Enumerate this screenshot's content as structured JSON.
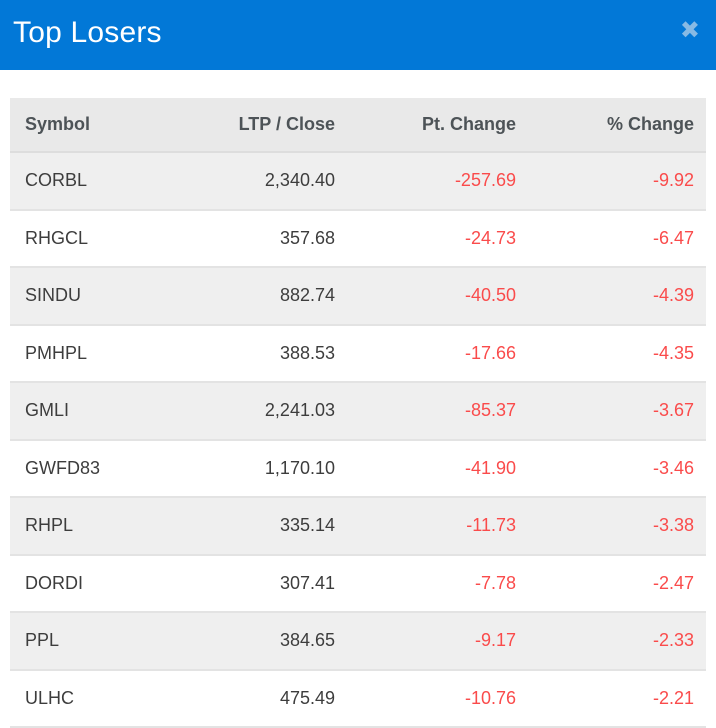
{
  "header": {
    "title": "Top Losers",
    "close_icon": "✖"
  },
  "colors": {
    "header_bg": "#0278d7",
    "close_icon": "#87bae4",
    "table_header_bg": "#e9e9e9",
    "row_stripe_bg": "#efefef",
    "negative_text": "#fa4b4b",
    "body_text": "#3d3d3d",
    "header_text": "#4d5357"
  },
  "table": {
    "columns": [
      {
        "label": "Symbol"
      },
      {
        "label": "LTP / Close"
      },
      {
        "label": "Pt. Change"
      },
      {
        "label": "% Change"
      }
    ],
    "rows": [
      {
        "symbol": "CORBL",
        "ltp_close": "2,340.40",
        "pt_change": "-257.69",
        "pct_change": "-9.92"
      },
      {
        "symbol": "RHGCL",
        "ltp_close": "357.68",
        "pt_change": "-24.73",
        "pct_change": "-6.47"
      },
      {
        "symbol": "SINDU",
        "ltp_close": "882.74",
        "pt_change": "-40.50",
        "pct_change": "-4.39"
      },
      {
        "symbol": "PMHPL",
        "ltp_close": "388.53",
        "pt_change": "-17.66",
        "pct_change": "-4.35"
      },
      {
        "symbol": "GMLI",
        "ltp_close": "2,241.03",
        "pt_change": "-85.37",
        "pct_change": "-3.67"
      },
      {
        "symbol": "GWFD83",
        "ltp_close": "1,170.10",
        "pt_change": "-41.90",
        "pct_change": "-3.46"
      },
      {
        "symbol": "RHPL",
        "ltp_close": "335.14",
        "pt_change": "-11.73",
        "pct_change": "-3.38"
      },
      {
        "symbol": "DORDI",
        "ltp_close": "307.41",
        "pt_change": "-7.78",
        "pct_change": "-2.47"
      },
      {
        "symbol": "PPL",
        "ltp_close": "384.65",
        "pt_change": "-9.17",
        "pct_change": "-2.33"
      },
      {
        "symbol": "ULHC",
        "ltp_close": "475.49",
        "pt_change": "-10.76",
        "pct_change": "-2.21"
      }
    ]
  }
}
